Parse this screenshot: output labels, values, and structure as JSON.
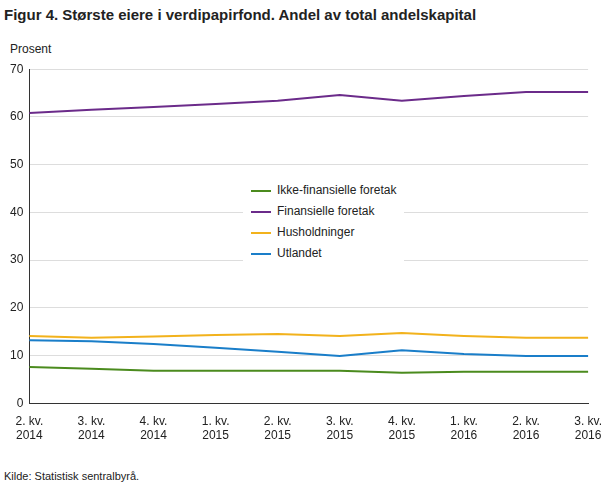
{
  "chart_data": {
    "type": "line",
    "title": "Figur 4. Største eiere i verdipapirfond. Andel av total andelskapital",
    "ylabel": "Prosent",
    "source": "Kilde: Statistisk sentralbyrå.",
    "categories": [
      "2. kv. 2014",
      "3. kv. 2014",
      "4. kv. 2014",
      "1. kv. 2015",
      "2. kv. 2015",
      "3. kv. 2015",
      "4. kv. 2015",
      "1. kv. 2016",
      "2. kv. 2016",
      "3. kv. 2016"
    ],
    "series": [
      {
        "name": "Ikke-finansielle foretak",
        "color": "#4b8b1e",
        "values": [
          7.6,
          7.2,
          6.8,
          6.8,
          6.8,
          6.8,
          6.4,
          6.6,
          6.6,
          6.6
        ]
      },
      {
        "name": "Finansielle foretak",
        "color": "#6b2b8a",
        "values": [
          60.8,
          61.5,
          62.1,
          62.7,
          63.4,
          64.6,
          63.4,
          64.4,
          65.2,
          65.2
        ]
      },
      {
        "name": "Husholdninger",
        "color": "#f2b21c",
        "values": [
          14.1,
          13.7,
          14.0,
          14.3,
          14.5,
          14.1,
          14.7,
          14.1,
          13.7,
          13.7
        ]
      },
      {
        "name": "Utlandet",
        "color": "#1a7ec9",
        "values": [
          13.2,
          13.0,
          12.4,
          11.6,
          10.8,
          9.9,
          11.1,
          10.3,
          9.9,
          9.9
        ]
      }
    ],
    "ylim": [
      0,
      70
    ],
    "yticks": [
      0,
      10,
      20,
      30,
      40,
      50,
      60,
      70
    ],
    "grid": true,
    "legend": "center",
    "marker": "none"
  }
}
